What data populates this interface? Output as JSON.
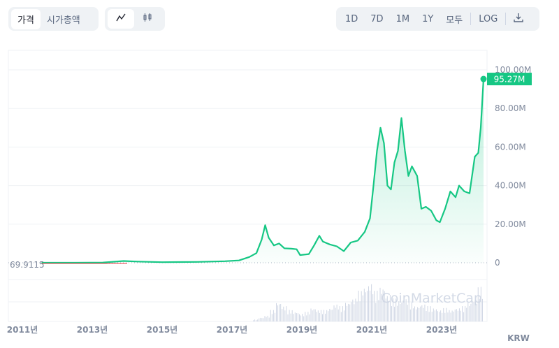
{
  "toolbar": {
    "metric_tabs": [
      {
        "label": "가격",
        "active": true
      },
      {
        "label": "시가총액",
        "active": false
      }
    ],
    "chart_types": [
      {
        "icon": "line-chart-icon",
        "active": true
      },
      {
        "icon": "candlestick-icon",
        "active": false
      }
    ],
    "ranges": [
      "1D",
      "7D",
      "1M",
      "1Y",
      "모두"
    ],
    "log_label": "LOG",
    "download_icon": "download-icon"
  },
  "currency": "KRW",
  "watermark": "CoinMarketCap",
  "start_label": "69.9115",
  "current_label": "95.27M",
  "colors": {
    "line": "#16c784",
    "start_line": "#ea3943"
  },
  "chart_data": {
    "type": "line",
    "x_unit": "year",
    "y_unit": "KRW (M)",
    "ylim": [
      0,
      100
    ],
    "yticks": [
      "0",
      "20.00M",
      "40.00M",
      "60.00M",
      "80.00M",
      "100.00M"
    ],
    "xticks": [
      "2011년",
      "2013년",
      "2015년",
      "2017년",
      "2019년",
      "2021년",
      "2023년"
    ],
    "xlim": [
      2010.6,
      2024.3
    ],
    "series": [
      {
        "points": [
          [
            2011.55,
            7e-05
          ],
          [
            2012.5,
            0.01
          ],
          [
            2013.3,
            0.1
          ],
          [
            2013.9,
            0.9
          ],
          [
            2014.3,
            0.6
          ],
          [
            2015.0,
            0.3
          ],
          [
            2016.0,
            0.45
          ],
          [
            2016.8,
            0.8
          ],
          [
            2017.2,
            1.2
          ],
          [
            2017.5,
            3
          ],
          [
            2017.7,
            5
          ],
          [
            2017.85,
            12
          ],
          [
            2017.95,
            19.5
          ],
          [
            2018.05,
            13
          ],
          [
            2018.2,
            9
          ],
          [
            2018.35,
            10
          ],
          [
            2018.5,
            7.5
          ],
          [
            2018.7,
            7.3
          ],
          [
            2018.85,
            7
          ],
          [
            2018.95,
            4
          ],
          [
            2019.2,
            4.5
          ],
          [
            2019.35,
            9
          ],
          [
            2019.5,
            14
          ],
          [
            2019.6,
            11
          ],
          [
            2019.8,
            9.5
          ],
          [
            2020.0,
            8.5
          ],
          [
            2020.2,
            6
          ],
          [
            2020.4,
            10.5
          ],
          [
            2020.6,
            11.5
          ],
          [
            2020.8,
            16
          ],
          [
            2020.95,
            23
          ],
          [
            2021.05,
            40
          ],
          [
            2021.15,
            58
          ],
          [
            2021.25,
            70
          ],
          [
            2021.35,
            62
          ],
          [
            2021.45,
            40
          ],
          [
            2021.55,
            38
          ],
          [
            2021.65,
            52
          ],
          [
            2021.75,
            58
          ],
          [
            2021.85,
            75
          ],
          [
            2021.95,
            58
          ],
          [
            2022.05,
            45
          ],
          [
            2022.15,
            50
          ],
          [
            2022.3,
            45
          ],
          [
            2022.42,
            28
          ],
          [
            2022.55,
            29
          ],
          [
            2022.7,
            27
          ],
          [
            2022.85,
            22
          ],
          [
            2022.95,
            21
          ],
          [
            2023.1,
            28
          ],
          [
            2023.25,
            37
          ],
          [
            2023.4,
            34
          ],
          [
            2023.5,
            40
          ],
          [
            2023.65,
            37
          ],
          [
            2023.8,
            36
          ],
          [
            2023.95,
            55
          ],
          [
            2024.05,
            57
          ],
          [
            2024.12,
            70
          ],
          [
            2024.2,
            95.27
          ]
        ]
      }
    ],
    "volume": [
      0.05,
      0.1,
      0.15,
      0.3,
      0.5,
      0.4,
      0.3,
      0.25,
      0.2,
      0.25,
      0.35,
      0.3,
      0.3,
      0.35,
      0.45,
      0.4,
      0.5,
      0.6,
      0.8,
      0.9,
      1.0,
      0.8,
      0.9,
      0.7,
      0.6,
      0.55,
      0.6,
      0.5,
      0.4,
      0.45,
      0.4,
      0.35,
      0.3,
      0.35,
      0.3,
      0.35,
      0.4,
      0.5,
      0.6,
      0.9
    ]
  }
}
